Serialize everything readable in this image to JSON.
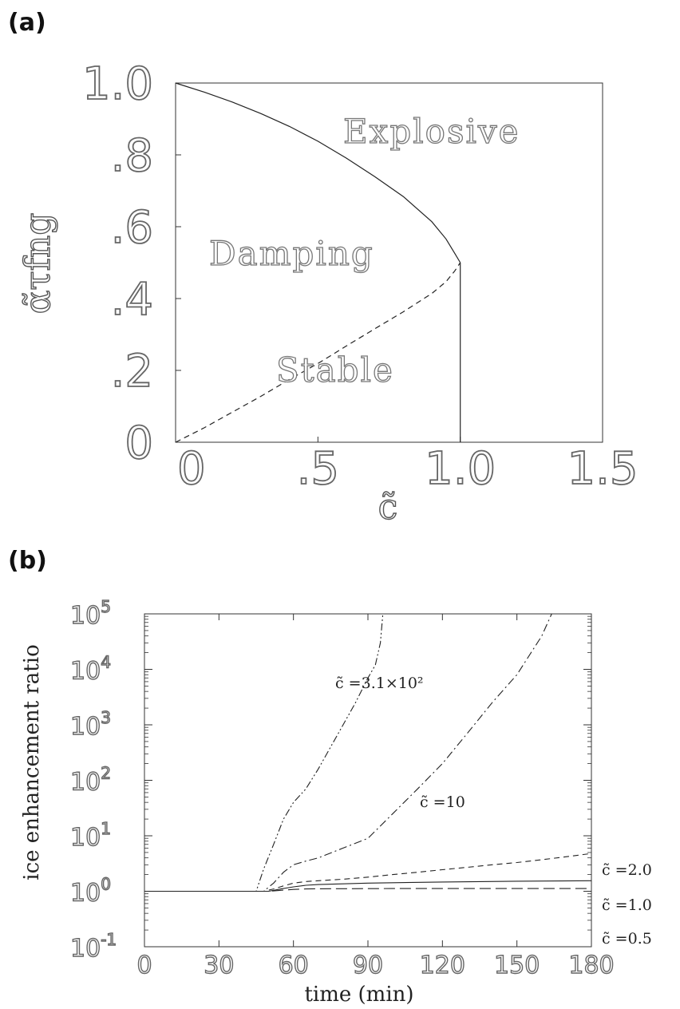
{
  "panel_a": {
    "label": "(a)",
    "region_labels": [
      "Explosive",
      "Damping",
      "Stable"
    ],
    "xlabel": "c̃",
    "ylabel": "α̃τfng"
  },
  "panel_b": {
    "label": "(b)",
    "xlabel": "time (min)",
    "ylabel": "ice enhancement ratio"
  },
  "chart_data": [
    {
      "type": "line",
      "xlim": [
        0,
        1.5
      ],
      "ylim": [
        0,
        1.0
      ],
      "x_ticks": [
        0,
        0.5,
        1.0,
        1.5
      ],
      "x_tick_labels": [
        "0",
        ".5",
        "1.0",
        "1.5"
      ],
      "y_ticks": [
        0,
        0.2,
        0.4,
        0.6,
        0.8,
        1.0
      ],
      "y_tick_labels": [
        "0",
        ".2",
        ".4",
        ".6",
        ".8",
        "1.0"
      ],
      "xlabel": "c̃",
      "ylabel": "α̃τfng",
      "annotations": [
        "Explosive",
        "Damping",
        "Stable"
      ],
      "series": [
        {
          "style": "solid",
          "x": [
            0,
            0.1,
            0.2,
            0.3,
            0.4,
            0.5,
            0.6,
            0.7,
            0.8,
            0.9,
            0.95,
            0.98,
            1.0
          ],
          "y": [
            1.0,
            0.975,
            0.947,
            0.915,
            0.879,
            0.838,
            0.791,
            0.739,
            0.684,
            0.614,
            0.566,
            0.527,
            0.5
          ]
        },
        {
          "style": "dashed",
          "x": [
            0,
            0.1,
            0.2,
            0.3,
            0.4,
            0.5,
            0.6,
            0.7,
            0.8,
            0.9,
            0.95,
            0.98,
            1.0
          ],
          "y": [
            0,
            0.04,
            0.084,
            0.128,
            0.175,
            0.219,
            0.268,
            0.316,
            0.363,
            0.414,
            0.447,
            0.476,
            0.5
          ]
        },
        {
          "style": "solid",
          "x": [
            1.0,
            1.0
          ],
          "y": [
            0,
            0.5
          ]
        }
      ]
    },
    {
      "type": "line",
      "xlim": [
        0,
        180
      ],
      "ylim": [
        0.1,
        100000
      ],
      "yscale": "log",
      "x_ticks": [
        0,
        30,
        60,
        90,
        120,
        150,
        180
      ],
      "y_ticks": [
        0.1,
        1,
        10,
        100,
        1000,
        10000,
        100000
      ],
      "y_tick_bases": [
        "10",
        "10",
        "10",
        "10",
        "10",
        "10",
        "10"
      ],
      "y_tick_exponents": [
        "-1",
        "0",
        "1",
        "2",
        "3",
        "4",
        "5"
      ],
      "xlabel": "time (min)",
      "ylabel": "ice enhancement ratio",
      "series": [
        {
          "name": "c̃ =3.1×10²",
          "style": "dashdotdot",
          "x": [
            0,
            45,
            48,
            52,
            56,
            60,
            65,
            70,
            75,
            80,
            85,
            90,
            93,
            95,
            96
          ],
          "y": [
            1,
            1,
            2.5,
            7,
            20,
            40,
            70,
            160,
            400,
            1000,
            2500,
            7000,
            12000,
            30000,
            100000
          ]
        },
        {
          "name": "c̃ =10",
          "style": "dashdot",
          "x": [
            0,
            48,
            52,
            56,
            60,
            65,
            70,
            80,
            90,
            100,
            110,
            120,
            130,
            140,
            150,
            160,
            164
          ],
          "y": [
            1,
            1,
            1.4,
            2.2,
            3,
            3.5,
            4,
            6,
            9,
            25,
            70,
            200,
            700,
            2500,
            8000,
            40000,
            100000
          ]
        },
        {
          "name": "c̃ =2.0",
          "style": "dashed",
          "x": [
            0,
            48,
            52,
            56,
            60,
            65,
            70,
            80,
            90,
            100,
            110,
            120,
            130,
            140,
            150,
            160,
            170,
            180
          ],
          "y": [
            1,
            1,
            1.1,
            1.25,
            1.4,
            1.5,
            1.55,
            1.65,
            1.8,
            2.0,
            2.2,
            2.45,
            2.7,
            3.0,
            3.3,
            3.7,
            4.2,
            4.8
          ]
        },
        {
          "name": "c̃ =1.0",
          "style": "solid",
          "x": [
            0,
            50,
            55,
            60,
            65,
            70,
            90,
            120,
            150,
            180
          ],
          "y": [
            1,
            1,
            1.1,
            1.2,
            1.28,
            1.32,
            1.4,
            1.47,
            1.52,
            1.55
          ]
        },
        {
          "name": "c̃ =0.5",
          "style": "longdash",
          "x": [
            0,
            50,
            55,
            60,
            65,
            70,
            100,
            140,
            180
          ],
          "y": [
            1,
            1,
            1.04,
            1.08,
            1.1,
            1.11,
            1.12,
            1.12,
            1.12
          ]
        }
      ]
    }
  ]
}
